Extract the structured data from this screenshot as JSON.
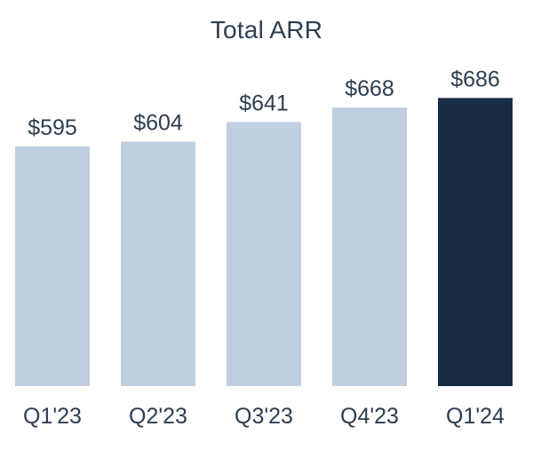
{
  "chart_data": {
    "type": "bar",
    "title": "Total ARR",
    "categories": [
      "Q1'23",
      "Q2'23",
      "Q3'23",
      "Q4'23",
      "Q1'24"
    ],
    "values": [
      595,
      604,
      641,
      668,
      686
    ],
    "value_labels": [
      "$595",
      "$604",
      "$641",
      "$668",
      "$686"
    ],
    "xlabel": "",
    "ylabel": "",
    "grid": false,
    "legend": "none",
    "colors": {
      "default_bar": "#bfcfdf",
      "highlight_bar": "#182c44",
      "text": "#2d3e50"
    },
    "highlight_index": 4
  }
}
